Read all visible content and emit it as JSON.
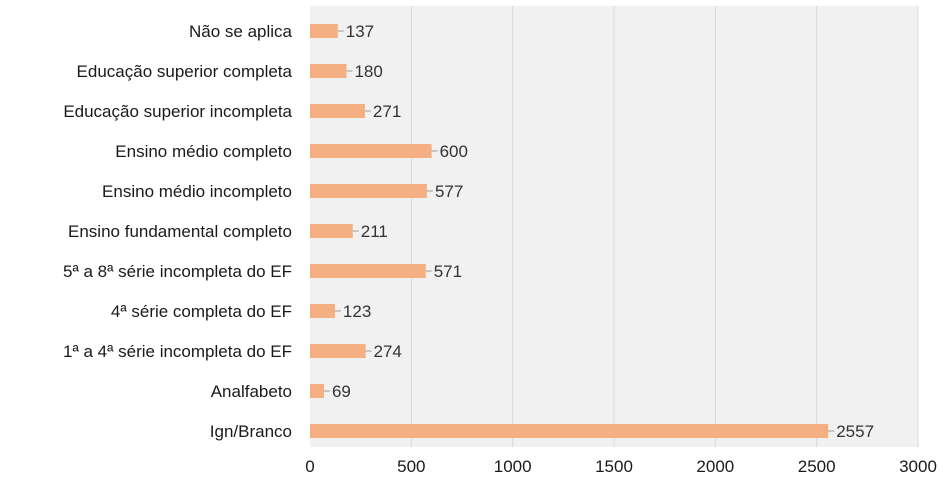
{
  "colors": {
    "bar": "#F4AF82",
    "plot_bg": "#F1F1F1",
    "grid": "#D9D9D9"
  },
  "chart_data": {
    "type": "bar",
    "orientation": "horizontal",
    "title": "",
    "xlabel": "",
    "ylabel": "",
    "categories": [
      "Não se aplica",
      "Educação superior completa",
      "Educação superior incompleta",
      "Ensino médio completo",
      "Ensino médio incompleto",
      "Ensino fundamental completo",
      "5ª a 8ª série incompleta do EF",
      "4ª série completa do EF",
      "1ª a 4ª série incompleta do EF",
      "Analfabeto",
      "Ign/Branco"
    ],
    "values": [
      137,
      180,
      271,
      600,
      577,
      211,
      571,
      123,
      274,
      69,
      2557
    ],
    "xlim": [
      0,
      3000
    ],
    "xticks": [
      0,
      500,
      1000,
      1500,
      2000,
      2500,
      3000
    ],
    "grid": "vertical",
    "legend": "none"
  }
}
